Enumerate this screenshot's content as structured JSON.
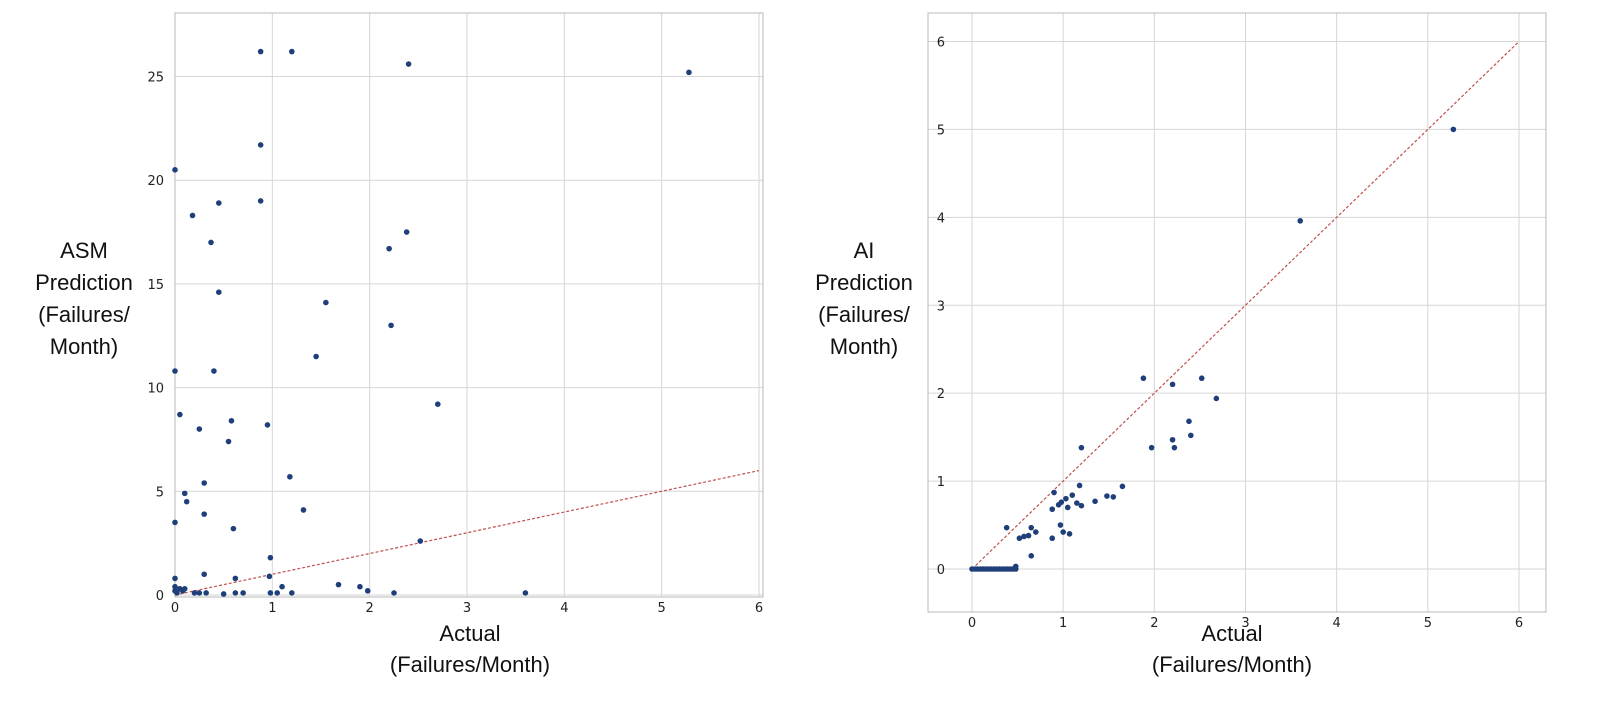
{
  "chart_data": [
    {
      "type": "scatter",
      "xlabel": [
        "Actual",
        "(Failures/Month)"
      ],
      "ylabel": [
        "ASM",
        "Prediction",
        "(Failures/",
        "Month)"
      ],
      "xlim": [
        0,
        6
      ],
      "ylim": [
        0,
        27.5
      ],
      "xticks": [
        0,
        1,
        2,
        3,
        4,
        5,
        6
      ],
      "yticks": [
        0,
        5,
        10,
        15,
        20,
        25
      ],
      "grid": true,
      "reference_line": {
        "x": [
          0,
          6
        ],
        "y": [
          0,
          6
        ],
        "style": "dashed",
        "color": "#c0504d"
      },
      "point_color": "#1f3f7a",
      "points": [
        [
          0.0,
          20.5
        ],
        [
          0.0,
          10.8
        ],
        [
          0.0,
          3.5
        ],
        [
          0.0,
          0.8
        ],
        [
          0.0,
          0.4
        ],
        [
          0.0,
          0.2
        ],
        [
          0.02,
          0.1
        ],
        [
          0.05,
          8.7
        ],
        [
          0.05,
          0.3
        ],
        [
          0.08,
          0.2
        ],
        [
          0.1,
          4.9
        ],
        [
          0.12,
          4.5
        ],
        [
          0.1,
          0.3
        ],
        [
          0.18,
          18.3
        ],
        [
          0.2,
          0.1
        ],
        [
          0.25,
          0.1
        ],
        [
          0.25,
          8.0
        ],
        [
          0.3,
          3.9
        ],
        [
          0.3,
          1.0
        ],
        [
          0.3,
          5.4
        ],
        [
          0.32,
          0.1
        ],
        [
          0.37,
          17.0
        ],
        [
          0.4,
          10.8
        ],
        [
          0.45,
          18.9
        ],
        [
          0.45,
          14.6
        ],
        [
          0.5,
          0.05
        ],
        [
          0.55,
          7.4
        ],
        [
          0.58,
          8.4
        ],
        [
          0.6,
          3.2
        ],
        [
          0.62,
          0.8
        ],
        [
          0.62,
          0.1
        ],
        [
          0.7,
          0.1
        ],
        [
          0.88,
          26.2
        ],
        [
          0.88,
          21.7
        ],
        [
          0.88,
          19.0
        ],
        [
          0.95,
          8.2
        ],
        [
          0.97,
          0.9
        ],
        [
          0.98,
          1.8
        ],
        [
          0.98,
          0.1
        ],
        [
          1.05,
          0.1
        ],
        [
          1.1,
          0.4
        ],
        [
          1.18,
          5.7
        ],
        [
          1.2,
          26.2
        ],
        [
          1.2,
          0.1
        ],
        [
          1.32,
          4.1
        ],
        [
          1.45,
          11.5
        ],
        [
          1.55,
          14.1
        ],
        [
          1.68,
          0.5
        ],
        [
          1.9,
          0.4
        ],
        [
          1.98,
          0.2
        ],
        [
          2.2,
          16.7
        ],
        [
          2.22,
          13.0
        ],
        [
          2.25,
          0.1
        ],
        [
          2.38,
          17.5
        ],
        [
          2.4,
          25.6
        ],
        [
          2.52,
          2.6
        ],
        [
          2.7,
          9.2
        ],
        [
          3.6,
          0.1
        ],
        [
          5.28,
          25.2
        ]
      ]
    },
    {
      "type": "scatter",
      "xlabel": [
        "Actual",
        "(Failures/Month)"
      ],
      "ylabel": [
        "AI",
        "Prediction",
        "(Failures/",
        "Month)"
      ],
      "xlim": [
        -0.5,
        6.3
      ],
      "ylim": [
        -0.5,
        6.3
      ],
      "xticks": [
        0,
        1,
        2,
        3,
        4,
        5,
        6
      ],
      "yticks": [
        0,
        1,
        2,
        3,
        4,
        5,
        6
      ],
      "grid": true,
      "reference_line": {
        "x": [
          0,
          6
        ],
        "y": [
          0,
          6
        ],
        "style": "dashed",
        "color": "#c0504d"
      },
      "point_color": "#1f3f7a",
      "points": [
        [
          0.0,
          0.0
        ],
        [
          0.03,
          0.0
        ],
        [
          0.06,
          0.0
        ],
        [
          0.09,
          0.0
        ],
        [
          0.12,
          0.0
        ],
        [
          0.15,
          0.0
        ],
        [
          0.18,
          0.0
        ],
        [
          0.21,
          0.0
        ],
        [
          0.24,
          0.0
        ],
        [
          0.27,
          0.0
        ],
        [
          0.3,
          0.0
        ],
        [
          0.33,
          0.0
        ],
        [
          0.36,
          0.0
        ],
        [
          0.39,
          0.0
        ],
        [
          0.42,
          0.0
        ],
        [
          0.45,
          0.0
        ],
        [
          0.48,
          0.0
        ],
        [
          0.48,
          0.03
        ],
        [
          0.38,
          0.47
        ],
        [
          0.52,
          0.35
        ],
        [
          0.57,
          0.37
        ],
        [
          0.62,
          0.38
        ],
        [
          0.65,
          0.47
        ],
        [
          0.65,
          0.15
        ],
        [
          0.7,
          0.42
        ],
        [
          0.88,
          0.35
        ],
        [
          0.88,
          0.68
        ],
        [
          0.9,
          0.87
        ],
        [
          0.95,
          0.73
        ],
        [
          0.97,
          0.5
        ],
        [
          0.98,
          0.76
        ],
        [
          1.0,
          0.42
        ],
        [
          1.03,
          0.8
        ],
        [
          1.05,
          0.7
        ],
        [
          1.07,
          0.4
        ],
        [
          1.1,
          0.84
        ],
        [
          1.15,
          0.75
        ],
        [
          1.18,
          0.95
        ],
        [
          1.2,
          0.72
        ],
        [
          1.2,
          1.38
        ],
        [
          1.35,
          0.77
        ],
        [
          1.48,
          0.83
        ],
        [
          1.55,
          0.82
        ],
        [
          1.65,
          0.94
        ],
        [
          1.88,
          2.17
        ],
        [
          1.97,
          1.38
        ],
        [
          2.2,
          2.1
        ],
        [
          2.2,
          1.47
        ],
        [
          2.22,
          1.38
        ],
        [
          2.38,
          1.68
        ],
        [
          2.4,
          1.52
        ],
        [
          2.52,
          2.17
        ],
        [
          2.68,
          1.94
        ],
        [
          3.6,
          3.96
        ],
        [
          5.28,
          5.0
        ]
      ]
    }
  ]
}
